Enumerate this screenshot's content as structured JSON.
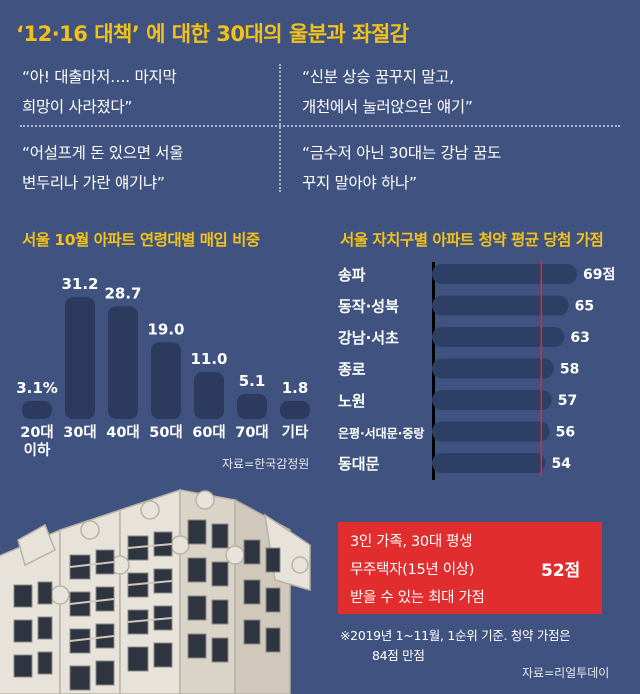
{
  "headline": "‘12·16 대책’ 에 대한 30대의 울분과 좌절감",
  "quotes": [
    {
      "line1": "“아! 대출마저…. 마지막",
      "line2": "희망이 사라졌다”"
    },
    {
      "line1": "“신분 상승 꿈꾸지 말고,",
      "line2": "개천에서 눌러앉으란 얘기”"
    },
    {
      "line1": "“어설프게 돈 있으면 서울",
      "line2": "변두리나 가란 얘기냐”"
    },
    {
      "line1": "“금수저 아닌 30대는 강남 꿈도",
      "line2": "꾸지 말아야 하나”"
    }
  ],
  "colors": {
    "background": "#3f5280",
    "accent_yellow": "#f2c21b",
    "bar_dark": "#2c3a5e",
    "bar_fill": "#2e3f66",
    "info_red": "#e12d2d"
  },
  "chart_data": [
    {
      "type": "bar",
      "title": "서울 10월 아파트 연령대별 매입 비중",
      "categories": [
        "20대 이하",
        "30대",
        "40대",
        "50대",
        "60대",
        "70대",
        "기타"
      ],
      "category_lines": [
        [
          "20대",
          "이하"
        ],
        [
          "30대"
        ],
        [
          "40대"
        ],
        [
          "50대"
        ],
        [
          "60대"
        ],
        [
          "70대"
        ],
        [
          "기타"
        ]
      ],
      "values": [
        3.1,
        31.2,
        28.7,
        19.0,
        11.0,
        5.1,
        1.8
      ],
      "value_labels": [
        "3.1%",
        "31.2",
        "28.7",
        "19.0",
        "11.0",
        "5.1",
        "1.8"
      ],
      "ylim": [
        0,
        35
      ],
      "source": "자료=한국감정원"
    },
    {
      "type": "bar",
      "orientation": "horizontal",
      "title": "서울 자치구별 아파트 청약 평균 당첨 가점",
      "categories": [
        "송파",
        "동작·성북",
        "강남·서초",
        "종로",
        "노원",
        "은평·서대문·중랑",
        "동대문"
      ],
      "values": [
        69,
        65,
        63,
        58,
        57,
        56,
        54
      ],
      "value_labels": [
        "69점",
        "65",
        "63",
        "58",
        "57",
        "56",
        "54"
      ],
      "xlim": [
        0,
        84
      ],
      "reference_line": 52
    }
  ],
  "info_box": {
    "line1": "3인 가족, 30대 평생",
    "line2": "무주택자(15년 이상)",
    "line3": "받을 수 있는 최대 가점",
    "score": "52점"
  },
  "note": {
    "line1": "※2019년 1~11월, 1순위 기준. 청약 가점은",
    "line2": "84점 만점"
  },
  "source2": "자료=리얼투데이"
}
